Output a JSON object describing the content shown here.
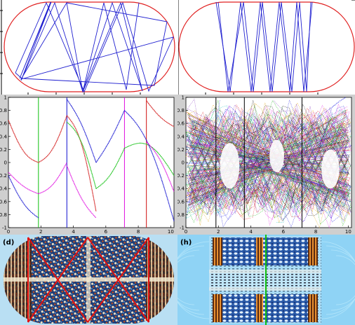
{
  "panels": {
    "d": {
      "label": "(d)"
    },
    "h": {
      "label": "(h)"
    }
  },
  "colors": {
    "billiard_boundary": "#e02020",
    "trajectory": "#2020d0",
    "orbit_red": "#d01010",
    "orbit_green": "#10c010",
    "orbit_blue": "#1010d0",
    "orbit_magenta": "#e010e0",
    "wave_background_d": "#b9dff3",
    "wave_background_h": "#8fd3f5"
  },
  "chart_data": [
    {
      "type": "line",
      "panel": "c",
      "xlim": [
        0,
        10.2
      ],
      "ylim": [
        -1,
        1
      ],
      "x_ticks": [
        "0",
        "2",
        "4",
        "6",
        "8",
        "10"
      ],
      "y_ticks": [
        "1",
        "0.8",
        "0.6",
        "0.4",
        "0.2",
        "0",
        "-0.2",
        "-0.4",
        "-0.6",
        "-0.8",
        "-1"
      ]
    },
    {
      "type": "line",
      "panel": "e",
      "xlim": [
        0,
        10.2
      ],
      "ylim": [
        -1,
        1
      ],
      "x_ticks": [
        "0",
        "2",
        "4",
        "6",
        "8",
        "10"
      ],
      "y_ticks": [
        "1",
        "0.8",
        "0.6",
        "0.4",
        "0.2",
        "0",
        "-0.2",
        "-0.4",
        "-0.6",
        "-0.8",
        "-1"
      ]
    }
  ]
}
